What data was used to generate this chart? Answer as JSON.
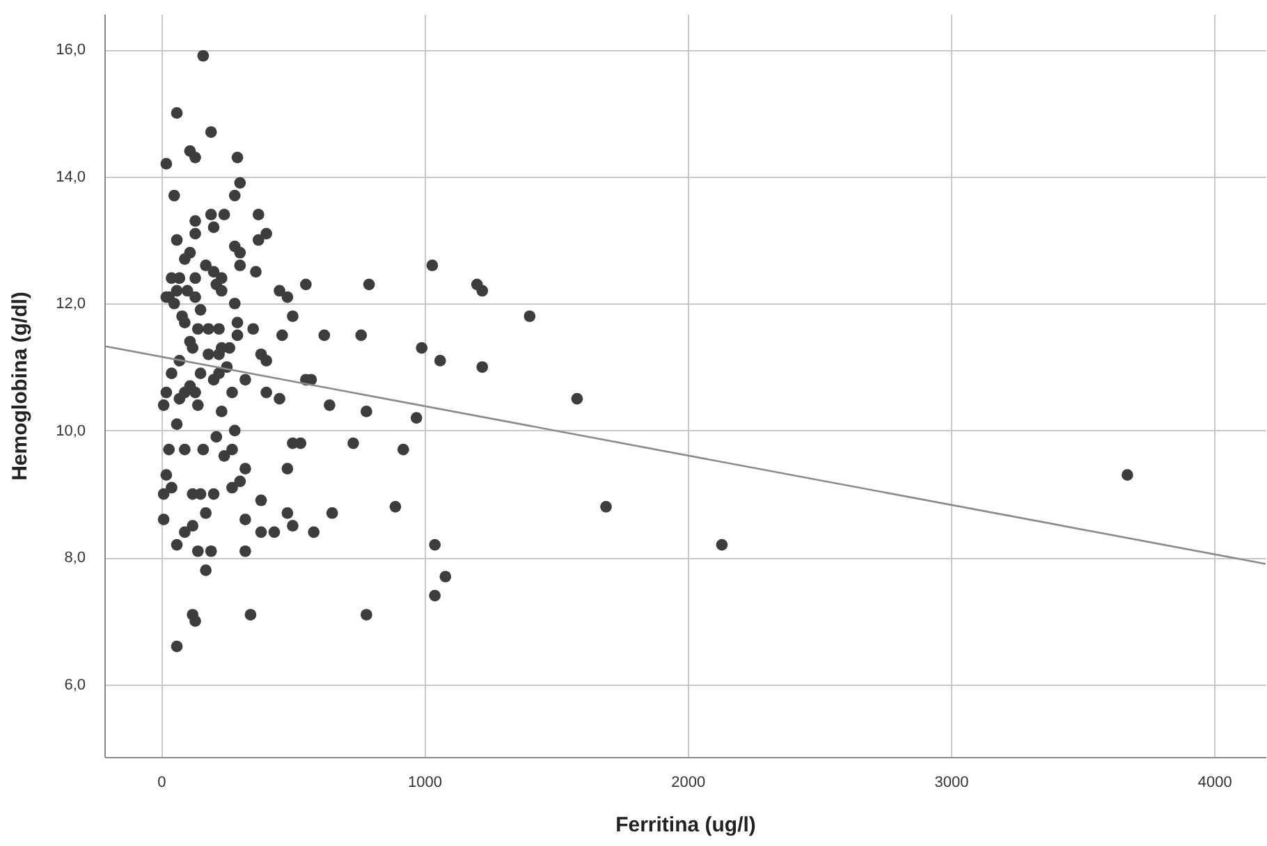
{
  "chart_data": {
    "type": "scatter",
    "xlabel": "Ferritina (ug/l)",
    "ylabel": "Hemoglobina (g/dl)",
    "xlim": [
      -215,
      4195
    ],
    "ylim": [
      4.86,
      16.56
    ],
    "xticks": [
      0,
      1000,
      2000,
      3000,
      4000
    ],
    "yticks": [
      {
        "value": 6,
        "label": "6,0"
      },
      {
        "value": 8,
        "label": "8,0"
      },
      {
        "value": 10,
        "label": "10,0"
      },
      {
        "value": 12,
        "label": "12,0"
      },
      {
        "value": 14,
        "label": "14,0"
      },
      {
        "value": 16,
        "label": "16,0"
      }
    ],
    "grid": true,
    "series": [
      {
        "marker": "circle",
        "color": "#3d3d3d",
        "x": [
          160,
          60,
          190,
          20,
          110,
          130,
          290,
          300,
          50,
          280,
          190,
          240,
          370,
          130,
          200,
          130,
          400,
          370,
          60,
          280,
          300,
          110,
          90,
          300,
          170,
          200,
          230,
          360,
          40,
          70,
          130,
          210,
          230,
          60,
          100,
          30,
          20,
          50,
          130,
          280,
          150,
          80,
          90,
          290,
          180,
          140,
          220,
          350,
          290,
          260,
          230,
          110,
          120,
          180,
          220,
          380,
          400,
          70,
          250,
          220,
          150,
          40,
          200,
          320,
          110,
          90,
          130,
          270,
          20,
          70,
          10,
          140,
          230,
          400,
          450,
          280,
          210,
          60,
          160,
          30,
          270,
          90,
          240,
          320,
          300,
          20,
          10,
          40,
          120,
          150,
          200,
          270,
          380,
          320,
          170,
          10,
          120,
          90,
          60,
          140,
          190,
          320,
          380,
          430,
          170,
          120,
          130,
          340,
          60,
          450,
          480,
          550,
          790,
          1030,
          1200,
          1220,
          1400,
          500,
          460,
          620,
          760,
          990,
          1060,
          1220,
          550,
          570,
          1580,
          640,
          780,
          970,
          500,
          530,
          730,
          920,
          480,
          480,
          500,
          580,
          650,
          890,
          1690,
          1040,
          2130,
          3670,
          1080,
          1040,
          780
        ],
        "values": [
          15.9,
          15.0,
          14.7,
          14.2,
          14.4,
          14.3,
          14.3,
          13.9,
          13.7,
          13.7,
          13.4,
          13.4,
          13.4,
          13.3,
          13.2,
          13.1,
          13.1,
          13.0,
          13.0,
          12.9,
          12.8,
          12.8,
          12.7,
          12.6,
          12.6,
          12.5,
          12.4,
          12.5,
          12.4,
          12.4,
          12.4,
          12.3,
          12.2,
          12.2,
          12.2,
          12.1,
          12.1,
          12.0,
          12.1,
          12.0,
          11.9,
          11.8,
          11.7,
          11.7,
          11.6,
          11.6,
          11.6,
          11.6,
          11.5,
          11.3,
          11.3,
          11.4,
          11.3,
          11.2,
          11.2,
          11.2,
          11.1,
          11.1,
          11.0,
          10.9,
          10.9,
          10.9,
          10.8,
          10.8,
          10.7,
          10.6,
          10.6,
          10.6,
          10.6,
          10.5,
          10.4,
          10.4,
          10.3,
          10.6,
          10.5,
          10.0,
          9.9,
          10.1,
          9.7,
          9.7,
          9.7,
          9.7,
          9.6,
          9.4,
          9.2,
          9.3,
          9.0,
          9.1,
          9.0,
          9.0,
          9.0,
          9.1,
          8.9,
          8.6,
          8.7,
          8.6,
          8.5,
          8.4,
          8.2,
          8.1,
          8.1,
          8.1,
          8.4,
          8.4,
          7.8,
          7.1,
          7.0,
          7.1,
          6.6,
          12.2,
          12.1,
          12.3,
          12.3,
          12.6,
          12.3,
          12.2,
          11.8,
          11.8,
          11.5,
          11.5,
          11.5,
          11.3,
          11.1,
          11.0,
          10.8,
          10.8,
          10.5,
          10.4,
          10.3,
          10.2,
          9.8,
          9.8,
          9.8,
          9.7,
          9.4,
          8.7,
          8.5,
          8.4,
          8.7,
          8.8,
          8.8,
          8.2,
          8.2,
          9.3,
          7.7,
          7.4,
          7.1
        ]
      },
      {
        "type": "line",
        "color": "#8a8a8a",
        "x": [
          -215,
          4195
        ],
        "values": [
          11.33,
          7.9
        ]
      }
    ]
  }
}
